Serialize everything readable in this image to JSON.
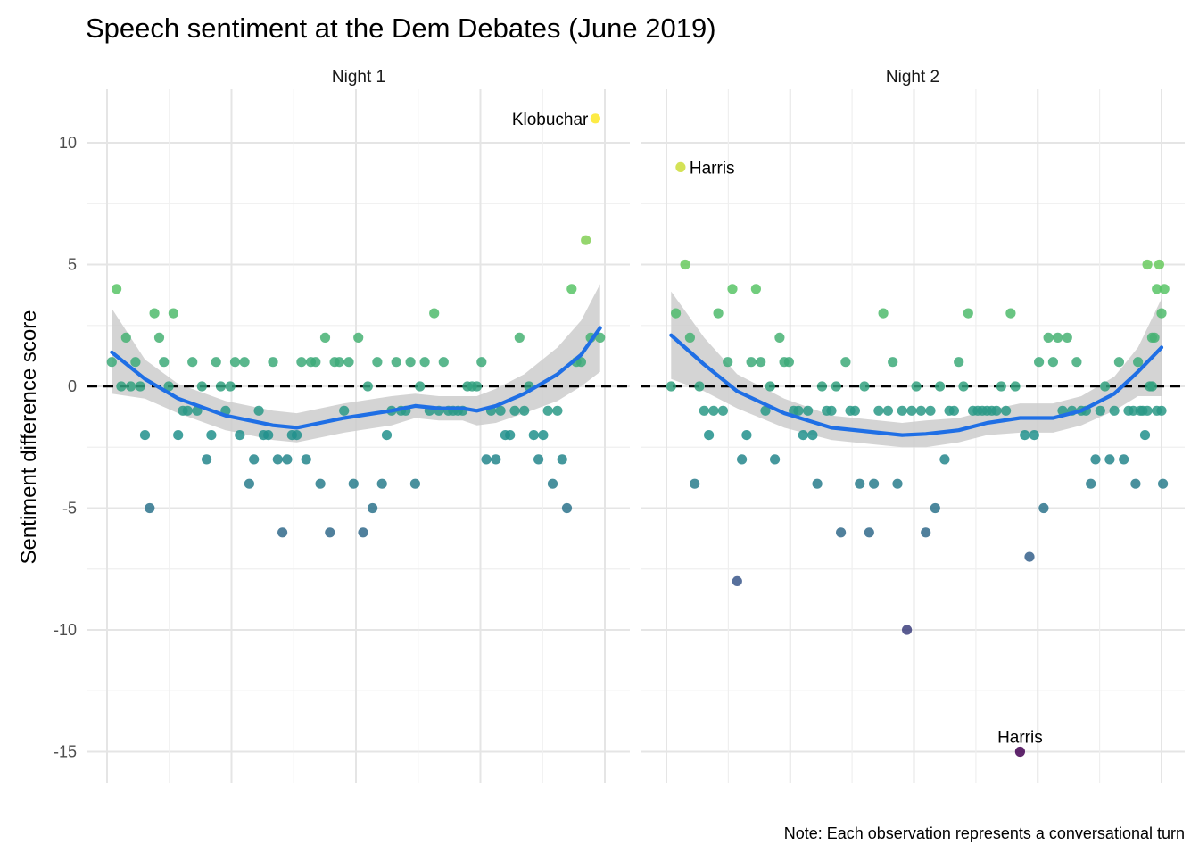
{
  "chart_data": {
    "type": "scatter",
    "title": "Speech sentiment at the Dem Debates (June 2019)",
    "xlabel": "",
    "ylabel": "Sentiment difference score",
    "caption": "Note: Each observation represents a conversational turn",
    "ylim": [
      -16.3,
      12.2
    ],
    "yticks": [
      10,
      5,
      0,
      -5,
      -10,
      -15
    ],
    "ytick_labels": [
      "10",
      "5",
      "0",
      "-5",
      "-10",
      "-15"
    ],
    "color_scale": {
      "min": -15,
      "max": 11,
      "stops": [
        "#440154",
        "#3b528b",
        "#21908c",
        "#5dc863",
        "#fde725"
      ]
    },
    "reference_line": {
      "y": 0,
      "style": "dashed"
    },
    "grid": true,
    "legend": "none",
    "smooth_color": "#1f6fe5",
    "band_color": "#cccccc",
    "panels": [
      {
        "label": "Night 1",
        "xlim": [
          0,
          105
        ],
        "points": [
          [
            1,
            1
          ],
          [
            2,
            4
          ],
          [
            3,
            0
          ],
          [
            4,
            2
          ],
          [
            5,
            0
          ],
          [
            6,
            1
          ],
          [
            7,
            0
          ],
          [
            8,
            -2
          ],
          [
            9,
            -5
          ],
          [
            10,
            3
          ],
          [
            11,
            2
          ],
          [
            12,
            1
          ],
          [
            13,
            0
          ],
          [
            14,
            3
          ],
          [
            15,
            -2
          ],
          [
            16,
            -1
          ],
          [
            17,
            -1
          ],
          [
            18,
            1
          ],
          [
            19,
            -1
          ],
          [
            20,
            0
          ],
          [
            21,
            -3
          ],
          [
            22,
            -2
          ],
          [
            23,
            1
          ],
          [
            24,
            0
          ],
          [
            25,
            -1
          ],
          [
            26,
            0
          ],
          [
            27,
            1
          ],
          [
            28,
            -2
          ],
          [
            29,
            1
          ],
          [
            30,
            -4
          ],
          [
            31,
            -3
          ],
          [
            32,
            -1
          ],
          [
            33,
            -2
          ],
          [
            34,
            -2
          ],
          [
            35,
            1
          ],
          [
            36,
            -3
          ],
          [
            37,
            -6
          ],
          [
            38,
            -3
          ],
          [
            39,
            -2
          ],
          [
            40,
            -2
          ],
          [
            41,
            1
          ],
          [
            42,
            -3
          ],
          [
            43,
            1
          ],
          [
            44,
            1
          ],
          [
            45,
            -4
          ],
          [
            46,
            2
          ],
          [
            47,
            -6
          ],
          [
            48,
            1
          ],
          [
            49,
            1
          ],
          [
            50,
            -1
          ],
          [
            51,
            1
          ],
          [
            52,
            -4
          ],
          [
            53,
            2
          ],
          [
            54,
            -6
          ],
          [
            55,
            0
          ],
          [
            56,
            -5
          ],
          [
            57,
            1
          ],
          [
            58,
            -4
          ],
          [
            59,
            -2
          ],
          [
            60,
            -1
          ],
          [
            61,
            1
          ],
          [
            62,
            -1
          ],
          [
            63,
            -1
          ],
          [
            64,
            1
          ],
          [
            65,
            -4
          ],
          [
            66,
            0
          ],
          [
            67,
            1
          ],
          [
            68,
            -1
          ],
          [
            69,
            3
          ],
          [
            70,
            -1
          ],
          [
            71,
            1
          ],
          [
            72,
            -1
          ],
          [
            73,
            -1
          ],
          [
            74,
            -1
          ],
          [
            75,
            -1
          ],
          [
            76,
            0
          ],
          [
            77,
            0
          ],
          [
            78,
            0
          ],
          [
            79,
            1
          ],
          [
            80,
            -3
          ],
          [
            81,
            -1
          ],
          [
            82,
            -3
          ],
          [
            83,
            -1
          ],
          [
            84,
            -2
          ],
          [
            85,
            -2
          ],
          [
            86,
            -1
          ],
          [
            87,
            2
          ],
          [
            88,
            -1
          ],
          [
            89,
            0
          ],
          [
            90,
            -2
          ],
          [
            91,
            -3
          ],
          [
            92,
            -2
          ],
          [
            93,
            -1
          ],
          [
            94,
            -4
          ],
          [
            95,
            -1
          ],
          [
            96,
            -3
          ],
          [
            97,
            -5
          ],
          [
            98,
            4
          ],
          [
            99,
            1
          ],
          [
            100,
            1
          ],
          [
            101,
            6
          ],
          [
            102,
            2
          ],
          [
            103,
            11
          ],
          [
            104,
            2
          ]
        ],
        "smooth": [
          [
            1,
            1.4
          ],
          [
            8,
            0.3
          ],
          [
            15,
            -0.5
          ],
          [
            25,
            -1.2
          ],
          [
            35,
            -1.6
          ],
          [
            40,
            -1.7
          ],
          [
            45,
            -1.5
          ],
          [
            50,
            -1.3
          ],
          [
            60,
            -1.0
          ],
          [
            65,
            -0.8
          ],
          [
            70,
            -0.9
          ],
          [
            75,
            -0.9
          ],
          [
            78,
            -1.0
          ],
          [
            82,
            -0.8
          ],
          [
            88,
            -0.3
          ],
          [
            95,
            0.5
          ],
          [
            100,
            1.3
          ],
          [
            104,
            2.4
          ]
        ],
        "band_upper": [
          [
            1,
            3.2
          ],
          [
            8,
            1.1
          ],
          [
            15,
            0.1
          ],
          [
            25,
            -0.6
          ],
          [
            35,
            -1.0
          ],
          [
            40,
            -1.1
          ],
          [
            45,
            -0.9
          ],
          [
            50,
            -0.7
          ],
          [
            60,
            -0.4
          ],
          [
            65,
            -0.3
          ],
          [
            70,
            -0.4
          ],
          [
            75,
            -0.4
          ],
          [
            78,
            -0.4
          ],
          [
            82,
            -0.1
          ],
          [
            88,
            0.5
          ],
          [
            95,
            1.6
          ],
          [
            100,
            2.7
          ],
          [
            104,
            4.2
          ]
        ],
        "band_lower": [
          [
            1,
            -0.3
          ],
          [
            8,
            -0.5
          ],
          [
            15,
            -1.1
          ],
          [
            25,
            -1.8
          ],
          [
            35,
            -2.2
          ],
          [
            40,
            -2.3
          ],
          [
            45,
            -2.1
          ],
          [
            50,
            -1.9
          ],
          [
            60,
            -1.6
          ],
          [
            65,
            -1.3
          ],
          [
            70,
            -1.4
          ],
          [
            75,
            -1.4
          ],
          [
            78,
            -1.6
          ],
          [
            82,
            -1.5
          ],
          [
            88,
            -1.1
          ],
          [
            95,
            -0.6
          ],
          [
            100,
            0.0
          ],
          [
            104,
            0.6
          ]
        ],
        "annotations": [
          {
            "text": "Klobuchar",
            "x": 103,
            "y": 11,
            "anchor": "end"
          }
        ]
      },
      {
        "label": "Night 2",
        "xlim": [
          0,
          105
        ],
        "points": [
          [
            1,
            0
          ],
          [
            2,
            3
          ],
          [
            3,
            9
          ],
          [
            4,
            5
          ],
          [
            5,
            2
          ],
          [
            6,
            -4
          ],
          [
            7,
            0
          ],
          [
            8,
            -1
          ],
          [
            9,
            -2
          ],
          [
            10,
            -1
          ],
          [
            11,
            3
          ],
          [
            12,
            -1
          ],
          [
            13,
            1
          ],
          [
            14,
            4
          ],
          [
            15,
            -8
          ],
          [
            16,
            -3
          ],
          [
            17,
            -2
          ],
          [
            18,
            1
          ],
          [
            19,
            4
          ],
          [
            20,
            1
          ],
          [
            21,
            -1
          ],
          [
            22,
            0
          ],
          [
            23,
            -3
          ],
          [
            24,
            2
          ],
          [
            25,
            1
          ],
          [
            26,
            1
          ],
          [
            27,
            -1
          ],
          [
            28,
            -1
          ],
          [
            29,
            -2
          ],
          [
            30,
            -1
          ],
          [
            31,
            -2
          ],
          [
            32,
            -4
          ],
          [
            33,
            0
          ],
          [
            34,
            -1
          ],
          [
            35,
            -1
          ],
          [
            36,
            0
          ],
          [
            37,
            -6
          ],
          [
            38,
            1
          ],
          [
            39,
            -1
          ],
          [
            40,
            -1
          ],
          [
            41,
            -4
          ],
          [
            42,
            0
          ],
          [
            43,
            -6
          ],
          [
            44,
            -4
          ],
          [
            45,
            -1
          ],
          [
            46,
            3
          ],
          [
            47,
            -1
          ],
          [
            48,
            1
          ],
          [
            49,
            -4
          ],
          [
            50,
            -1
          ],
          [
            51,
            -10
          ],
          [
            52,
            -1
          ],
          [
            53,
            0
          ],
          [
            54,
            -1
          ],
          [
            55,
            -6
          ],
          [
            56,
            -1
          ],
          [
            57,
            -5
          ],
          [
            58,
            0
          ],
          [
            59,
            -3
          ],
          [
            60,
            -1
          ],
          [
            61,
            -1
          ],
          [
            62,
            1
          ],
          [
            63,
            0
          ],
          [
            64,
            3
          ],
          [
            65,
            -1
          ],
          [
            66,
            -1
          ],
          [
            67,
            -1
          ],
          [
            68,
            -1
          ],
          [
            69,
            -1
          ],
          [
            70,
            -1
          ],
          [
            71,
            0
          ],
          [
            72,
            -1
          ],
          [
            73,
            3
          ],
          [
            74,
            0
          ],
          [
            75,
            -15
          ],
          [
            76,
            -2
          ],
          [
            77,
            -7
          ],
          [
            78,
            -2
          ],
          [
            79,
            1
          ],
          [
            80,
            -5
          ],
          [
            81,
            2
          ],
          [
            82,
            1
          ],
          [
            83,
            2
          ],
          [
            84,
            -1
          ],
          [
            85,
            2
          ],
          [
            86,
            -1
          ],
          [
            87,
            1
          ],
          [
            88,
            -1
          ],
          [
            89,
            -1
          ],
          [
            90,
            -4
          ],
          [
            91,
            -3
          ],
          [
            92,
            -1
          ],
          [
            93,
            0
          ],
          [
            94,
            -3
          ],
          [
            95,
            -1
          ],
          [
            96,
            1
          ],
          [
            97,
            -3
          ],
          [
            98,
            -1
          ],
          [
            99,
            -1
          ],
          [
            100,
            1
          ],
          [
            101,
            -1
          ],
          [
            102,
            -1
          ],
          [
            103,
            0
          ],
          [
            104,
            -1
          ],
          [
            105,
            -1
          ]
        ],
        "points_tail": [
          [
            99.5,
            -4
          ],
          [
            100.5,
            -1
          ],
          [
            101.5,
            -2
          ],
          [
            102,
            5
          ],
          [
            102.5,
            0
          ],
          [
            103,
            2
          ],
          [
            103.5,
            2
          ],
          [
            104,
            4
          ],
          [
            104.5,
            5
          ],
          [
            105,
            3
          ],
          [
            105.3,
            -4
          ],
          [
            105.6,
            4
          ]
        ],
        "smooth": [
          [
            1,
            2.1
          ],
          [
            8,
            0.9
          ],
          [
            15,
            -0.2
          ],
          [
            25,
            -1.1
          ],
          [
            35,
            -1.7
          ],
          [
            45,
            -1.9
          ],
          [
            50,
            -2.0
          ],
          [
            55,
            -1.95
          ],
          [
            62,
            -1.8
          ],
          [
            68,
            -1.5
          ],
          [
            75,
            -1.3
          ],
          [
            82,
            -1.3
          ],
          [
            88,
            -1.0
          ],
          [
            95,
            -0.3
          ],
          [
            100,
            0.6
          ],
          [
            105,
            1.6
          ]
        ],
        "band_upper": [
          [
            1,
            3.9
          ],
          [
            8,
            2.0
          ],
          [
            15,
            0.5
          ],
          [
            25,
            -0.5
          ],
          [
            35,
            -1.2
          ],
          [
            45,
            -1.4
          ],
          [
            50,
            -1.5
          ],
          [
            55,
            -1.4
          ],
          [
            62,
            -1.3
          ],
          [
            68,
            -1.0
          ],
          [
            75,
            -0.7
          ],
          [
            82,
            -0.7
          ],
          [
            88,
            -0.4
          ],
          [
            95,
            0.4
          ],
          [
            100,
            1.6
          ],
          [
            105,
            3.6
          ]
        ],
        "band_lower": [
          [
            1,
            0.3
          ],
          [
            8,
            -0.2
          ],
          [
            15,
            -0.9
          ],
          [
            25,
            -1.7
          ],
          [
            35,
            -2.2
          ],
          [
            45,
            -2.4
          ],
          [
            50,
            -2.5
          ],
          [
            55,
            -2.5
          ],
          [
            62,
            -2.3
          ],
          [
            68,
            -2.0
          ],
          [
            75,
            -1.9
          ],
          [
            82,
            -1.9
          ],
          [
            88,
            -1.6
          ],
          [
            95,
            -1.0
          ],
          [
            100,
            -0.4
          ],
          [
            105,
            -0.4
          ]
        ],
        "annotations": [
          {
            "text": "Harris",
            "x": 3,
            "y": 9,
            "anchor": "start"
          },
          {
            "text": "Harris",
            "x": 75,
            "y": -15,
            "anchor": "middle"
          }
        ]
      }
    ]
  }
}
